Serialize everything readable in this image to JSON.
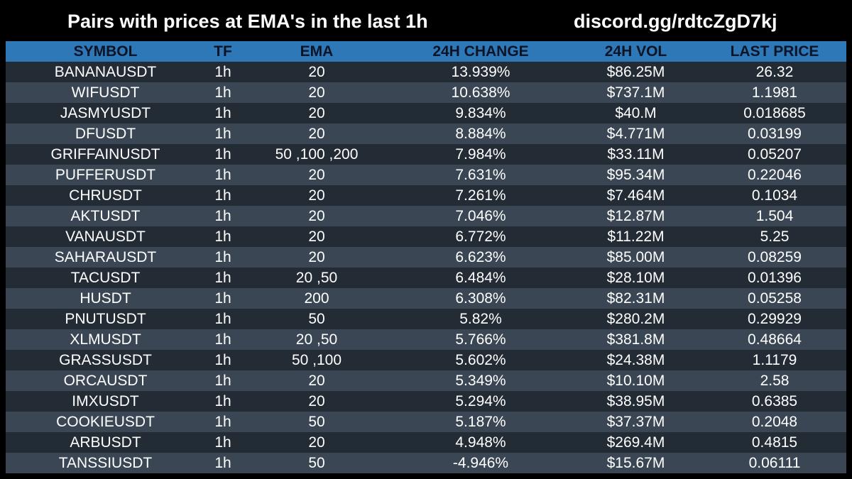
{
  "header": {
    "title": "Pairs with prices at EMA's in the last 1h",
    "discord": "discord.gg/rdtcZgD7kj"
  },
  "colors": {
    "background": "#000000",
    "header_row": "#2e78b8",
    "row_dark": "#232b34",
    "row_light": "#3a4653"
  },
  "table": {
    "columns": [
      "SYMBOL",
      "TF",
      "EMA",
      "24H CHANGE",
      "24H VOL",
      "LAST PRICE"
    ],
    "rows": [
      [
        "BANANAUSDT",
        "1h",
        "20",
        "13.939%",
        "$86.25M",
        "26.32"
      ],
      [
        "WIFUSDT",
        "1h",
        "20",
        "10.638%",
        "$737.1M",
        "1.1981"
      ],
      [
        "JASMYUSDT",
        "1h",
        "20",
        "9.834%",
        "$40.M",
        "0.018685"
      ],
      [
        "DFUSDT",
        "1h",
        "20",
        "8.884%",
        "$4.771M",
        "0.03199"
      ],
      [
        "GRIFFAINUSDT",
        "1h",
        "50 ,100 ,200",
        "7.984%",
        "$33.11M",
        "0.05207"
      ],
      [
        "PUFFERUSDT",
        "1h",
        "20",
        "7.631%",
        "$95.34M",
        "0.22046"
      ],
      [
        "CHRUSDT",
        "1h",
        "20",
        "7.261%",
        "$7.464M",
        "0.1034"
      ],
      [
        "AKTUSDT",
        "1h",
        "20",
        "7.046%",
        "$12.87M",
        "1.504"
      ],
      [
        "VANAUSDT",
        "1h",
        "20",
        "6.772%",
        "$11.22M",
        "5.25"
      ],
      [
        "SAHARAUSDT",
        "1h",
        "20",
        "6.623%",
        "$85.00M",
        "0.08259"
      ],
      [
        "TACUSDT",
        "1h",
        "20 ,50",
        "6.484%",
        "$28.10M",
        "0.01396"
      ],
      [
        "HUSDT",
        "1h",
        "200",
        "6.308%",
        "$82.31M",
        "0.05258"
      ],
      [
        "PNUTUSDT",
        "1h",
        "50",
        "5.82%",
        "$280.2M",
        "0.29929"
      ],
      [
        "XLMUSDT",
        "1h",
        "20 ,50",
        "5.766%",
        "$381.8M",
        "0.48664"
      ],
      [
        "GRASSUSDT",
        "1h",
        "50 ,100",
        "5.602%",
        "$24.38M",
        "1.1179"
      ],
      [
        "ORCAUSDT",
        "1h",
        "20",
        "5.349%",
        "$10.10M",
        "2.58"
      ],
      [
        "IMXUSDT",
        "1h",
        "20",
        "5.294%",
        "$38.95M",
        "0.6385"
      ],
      [
        "COOKIEUSDT",
        "1h",
        "50",
        "5.187%",
        "$37.37M",
        "0.2048"
      ],
      [
        "ARBUSDT",
        "1h",
        "20",
        "4.948%",
        "$269.4M",
        "0.4815"
      ],
      [
        "TANSSIUSDT",
        "1h",
        "50",
        "-4.946%",
        "$15.67M",
        "0.06111"
      ]
    ]
  }
}
